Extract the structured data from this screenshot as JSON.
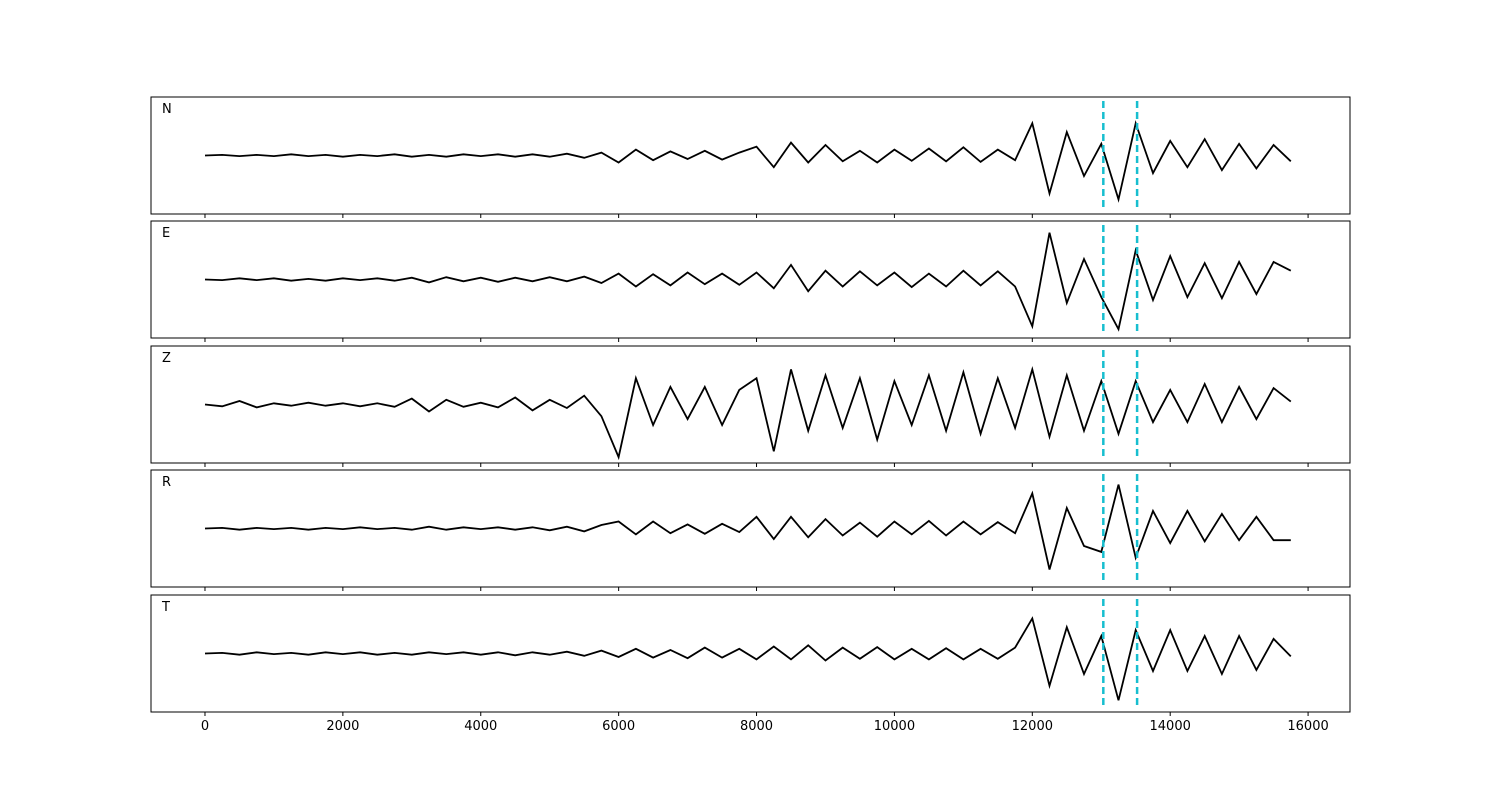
{
  "chart_data": [
    {
      "type": "line",
      "label": "N",
      "xlim": [
        -783,
        16608
      ],
      "ylim": [
        -1,
        1
      ],
      "xticks": [
        0,
        2000,
        4000,
        6000,
        8000,
        10000,
        12000,
        14000,
        16000
      ],
      "vlines": [
        13030,
        13520
      ],
      "vline_color": "#17becf",
      "color": "#000000",
      "x": [
        0,
        250,
        500,
        750,
        1000,
        1250,
        1500,
        1750,
        2000,
        2250,
        2500,
        2750,
        3000,
        3250,
        3500,
        3750,
        4000,
        4250,
        4500,
        4750,
        5000,
        5250,
        5500,
        5750,
        6000,
        6250,
        6500,
        6750,
        7000,
        7250,
        7500,
        7750,
        8000,
        8250,
        8500,
        8750,
        9000,
        9250,
        9500,
        9750,
        10000,
        10250,
        10500,
        10750,
        11000,
        11250,
        11500,
        11750,
        12000,
        12250,
        12500,
        12750,
        13000,
        13250,
        13500,
        13750,
        14000,
        14250,
        14500,
        14750,
        15000,
        15250,
        15500,
        15750
      ],
      "values": [
        0,
        0.01,
        -0.01,
        0.01,
        -0.01,
        0.02,
        -0.01,
        0.01,
        -0.02,
        0.01,
        -0.01,
        0.02,
        -0.02,
        0.01,
        -0.02,
        0.02,
        -0.01,
        0.02,
        -0.02,
        0.02,
        -0.02,
        0.03,
        -0.04,
        0.05,
        -0.12,
        0.1,
        -0.08,
        0.07,
        -0.06,
        0.08,
        -0.07,
        0.05,
        0.15,
        -0.2,
        0.22,
        -0.12,
        0.18,
        -0.1,
        0.08,
        -0.12,
        0.1,
        -0.09,
        0.12,
        -0.1,
        0.14,
        -0.11,
        0.1,
        -0.08,
        0.55,
        -0.65,
        0.4,
        -0.35,
        0.2,
        -0.75,
        0.55,
        -0.3,
        0.25,
        -0.2,
        0.28,
        -0.25,
        0.2,
        -0.22,
        0.18,
        -0.1
      ]
    },
    {
      "type": "line",
      "label": "E",
      "xlim": [
        -783,
        16608
      ],
      "ylim": [
        -1,
        1
      ],
      "xticks": [
        0,
        2000,
        4000,
        6000,
        8000,
        10000,
        12000,
        14000,
        16000
      ],
      "vlines": [
        13030,
        13520
      ],
      "vline_color": "#17becf",
      "color": "#000000",
      "x": [
        0,
        250,
        500,
        750,
        1000,
        1250,
        1500,
        1750,
        2000,
        2250,
        2500,
        2750,
        3000,
        3250,
        3500,
        3750,
        4000,
        4250,
        4500,
        4750,
        5000,
        5250,
        5500,
        5750,
        6000,
        6250,
        6500,
        6750,
        7000,
        7250,
        7500,
        7750,
        8000,
        8250,
        8500,
        8750,
        9000,
        9250,
        9500,
        9750,
        10000,
        10250,
        10500,
        10750,
        11000,
        11250,
        11500,
        11750,
        12000,
        12250,
        12500,
        12750,
        13000,
        13250,
        13500,
        13750,
        14000,
        14250,
        14500,
        14750,
        15000,
        15250,
        15500,
        15750
      ],
      "values": [
        0,
        -0.01,
        0.02,
        -0.01,
        0.02,
        -0.02,
        0.01,
        -0.02,
        0.02,
        -0.01,
        0.02,
        -0.02,
        0.03,
        -0.05,
        0.04,
        -0.03,
        0.03,
        -0.04,
        0.03,
        -0.03,
        0.04,
        -0.03,
        0.05,
        -0.06,
        0.1,
        -0.12,
        0.09,
        -0.1,
        0.12,
        -0.08,
        0.1,
        -0.09,
        0.12,
        -0.15,
        0.25,
        -0.2,
        0.15,
        -0.12,
        0.14,
        -0.1,
        0.12,
        -0.13,
        0.1,
        -0.12,
        0.15,
        -0.1,
        0.14,
        -0.12,
        -0.8,
        0.8,
        -0.4,
        0.35,
        -0.3,
        -0.85,
        0.5,
        -0.35,
        0.4,
        -0.3,
        0.28,
        -0.32,
        0.3,
        -0.25,
        0.3,
        0.15
      ]
    },
    {
      "type": "line",
      "label": "Z",
      "xlim": [
        -783,
        16608
      ],
      "ylim": [
        -1,
        1
      ],
      "xticks": [
        0,
        2000,
        4000,
        6000,
        8000,
        10000,
        12000,
        14000,
        16000
      ],
      "vlines": [
        13030,
        13520
      ],
      "vline_color": "#17becf",
      "color": "#000000",
      "x": [
        0,
        250,
        500,
        750,
        1000,
        1250,
        1500,
        1750,
        2000,
        2250,
        2500,
        2750,
        3000,
        3250,
        3500,
        3750,
        4000,
        4250,
        4500,
        4750,
        5000,
        5250,
        5500,
        5750,
        6000,
        6250,
        6500,
        6750,
        7000,
        7250,
        7500,
        7750,
        8000,
        8250,
        8500,
        8750,
        9000,
        9250,
        9500,
        9750,
        10000,
        10250,
        10500,
        10750,
        11000,
        11250,
        11500,
        11750,
        12000,
        12250,
        12500,
        12750,
        13000,
        13250,
        13500,
        13750,
        14000,
        14250,
        14500,
        14750,
        15000,
        15250,
        15500,
        15750
      ],
      "values": [
        0,
        -0.03,
        0.06,
        -0.05,
        0.02,
        -0.02,
        0.03,
        -0.02,
        0.02,
        -0.03,
        0.02,
        -0.04,
        0.1,
        -0.12,
        0.08,
        -0.04,
        0.03,
        -0.05,
        0.12,
        -0.1,
        0.08,
        -0.06,
        0.15,
        -0.2,
        -0.9,
        0.45,
        -0.35,
        0.3,
        -0.25,
        0.3,
        -0.35,
        0.25,
        0.45,
        -0.8,
        0.6,
        -0.45,
        0.5,
        -0.4,
        0.45,
        -0.6,
        0.4,
        -0.35,
        0.5,
        -0.45,
        0.55,
        -0.5,
        0.45,
        -0.4,
        0.6,
        -0.55,
        0.5,
        -0.45,
        0.4,
        -0.5,
        0.4,
        -0.3,
        0.25,
        -0.3,
        0.35,
        -0.3,
        0.3,
        -0.25,
        0.28,
        0.05
      ]
    },
    {
      "type": "line",
      "label": "R",
      "xlim": [
        -783,
        16608
      ],
      "ylim": [
        -1,
        1
      ],
      "xticks": [
        0,
        2000,
        4000,
        6000,
        8000,
        10000,
        12000,
        14000,
        16000
      ],
      "vlines": [
        13030,
        13520
      ],
      "vline_color": "#17becf",
      "color": "#000000",
      "x": [
        0,
        250,
        500,
        750,
        1000,
        1250,
        1500,
        1750,
        2000,
        2250,
        2500,
        2750,
        3000,
        3250,
        3500,
        3750,
        4000,
        4250,
        4500,
        4750,
        5000,
        5250,
        5500,
        5750,
        6000,
        6250,
        6500,
        6750,
        7000,
        7250,
        7500,
        7750,
        8000,
        8250,
        8500,
        8750,
        9000,
        9250,
        9500,
        9750,
        10000,
        10250,
        10500,
        10750,
        11000,
        11250,
        11500,
        11750,
        12000,
        12250,
        12500,
        12750,
        13000,
        13250,
        13500,
        13750,
        14000,
        14250,
        14500,
        14750,
        15000,
        15250,
        15500,
        15750
      ],
      "values": [
        0,
        0.01,
        -0.02,
        0.01,
        -0.01,
        0.01,
        -0.02,
        0.01,
        -0.01,
        0.02,
        -0.01,
        0.01,
        -0.02,
        0.03,
        -0.02,
        0.02,
        -0.01,
        0.02,
        -0.02,
        0.02,
        -0.03,
        0.03,
        -0.05,
        0.06,
        0.12,
        -0.1,
        0.12,
        -0.08,
        0.07,
        -0.09,
        0.08,
        -0.06,
        0.2,
        -0.18,
        0.2,
        -0.15,
        0.16,
        -0.12,
        0.1,
        -0.14,
        0.12,
        -0.1,
        0.13,
        -0.12,
        0.12,
        -0.1,
        0.11,
        -0.08,
        0.6,
        -0.7,
        0.35,
        -0.3,
        -0.4,
        0.75,
        -0.5,
        0.3,
        -0.25,
        0.3,
        -0.22,
        0.25,
        -0.2,
        0.2,
        -0.2,
        -0.2
      ]
    },
    {
      "type": "line",
      "label": "T",
      "xlim": [
        -783,
        16608
      ],
      "ylim": [
        -1,
        1
      ],
      "xticks": [
        0,
        2000,
        4000,
        6000,
        8000,
        10000,
        12000,
        14000,
        16000
      ],
      "vlines": [
        13030,
        13520
      ],
      "vline_color": "#17becf",
      "color": "#000000",
      "x": [
        0,
        250,
        500,
        750,
        1000,
        1250,
        1500,
        1750,
        2000,
        2250,
        2500,
        2750,
        3000,
        3250,
        3500,
        3750,
        4000,
        4250,
        4500,
        4750,
        5000,
        5250,
        5500,
        5750,
        6000,
        6250,
        6500,
        6750,
        7000,
        7250,
        7500,
        7750,
        8000,
        8250,
        8500,
        8750,
        9000,
        9250,
        9500,
        9750,
        10000,
        10250,
        10500,
        10750,
        11000,
        11250,
        11500,
        11750,
        12000,
        12250,
        12500,
        12750,
        13000,
        13250,
        13500,
        13750,
        14000,
        14250,
        14500,
        14750,
        15000,
        15250,
        15500,
        15750
      ],
      "values": [
        0,
        0.01,
        -0.02,
        0.02,
        -0.01,
        0.01,
        -0.02,
        0.02,
        -0.01,
        0.02,
        -0.02,
        0.01,
        -0.02,
        0.02,
        -0.01,
        0.02,
        -0.02,
        0.02,
        -0.03,
        0.02,
        -0.02,
        0.03,
        -0.04,
        0.05,
        -0.06,
        0.08,
        -0.07,
        0.06,
        -0.08,
        0.1,
        -0.07,
        0.08,
        -0.1,
        0.12,
        -0.1,
        0.14,
        -0.12,
        0.1,
        -0.09,
        0.11,
        -0.1,
        0.08,
        -0.1,
        0.09,
        -0.1,
        0.08,
        -0.09,
        0.1,
        0.6,
        -0.55,
        0.45,
        -0.35,
        0.3,
        -0.8,
        0.4,
        -0.3,
        0.4,
        -0.3,
        0.3,
        -0.35,
        0.3,
        -0.28,
        0.25,
        -0.05
      ]
    }
  ]
}
